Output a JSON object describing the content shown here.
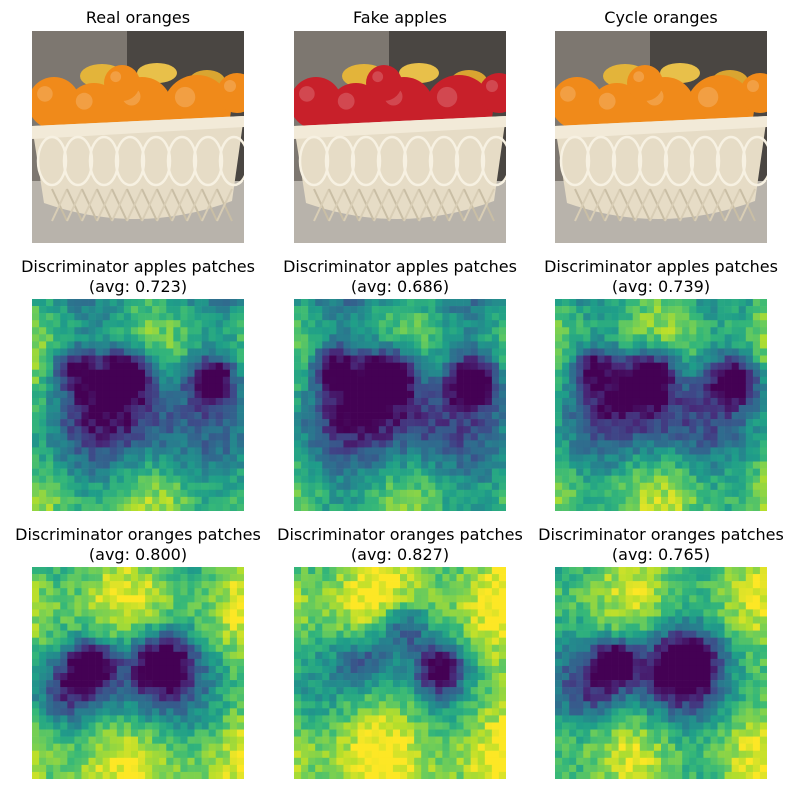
{
  "panels": [
    {
      "id": "p00",
      "title": "Real oranges",
      "kind": "photo",
      "fruit": "orange"
    },
    {
      "id": "p01",
      "title": "Fake apples",
      "kind": "photo",
      "fruit": "apple"
    },
    {
      "id": "p02",
      "title": "Cycle oranges",
      "kind": "photo",
      "fruit": "orange"
    },
    {
      "id": "p10",
      "title": "Discriminator apples patches",
      "subtitle": "(avg: 0.723)",
      "kind": "heatmap",
      "avg": 0.723
    },
    {
      "id": "p11",
      "title": "Discriminator apples patches",
      "subtitle": "(avg: 0.686)",
      "kind": "heatmap",
      "avg": 0.686
    },
    {
      "id": "p12",
      "title": "Discriminator apples patches",
      "subtitle": "(avg: 0.739)",
      "kind": "heatmap",
      "avg": 0.739
    },
    {
      "id": "p20",
      "title": "Discriminator oranges patches",
      "subtitle": "(avg: 0.800)",
      "kind": "heatmap",
      "avg": 0.8
    },
    {
      "id": "p21",
      "title": "Discriminator oranges patches",
      "subtitle": "(avg: 0.827)",
      "kind": "heatmap",
      "avg": 0.827
    },
    {
      "id": "p22",
      "title": "Discriminator oranges patches",
      "subtitle": "(avg: 0.765)",
      "kind": "heatmap",
      "avg": 0.765
    }
  ],
  "colors": {
    "orange": "#f08a1a",
    "apple": "#c8202a",
    "basket": "#e6dcc6",
    "background": "#4a4642",
    "colormap": "viridis"
  }
}
